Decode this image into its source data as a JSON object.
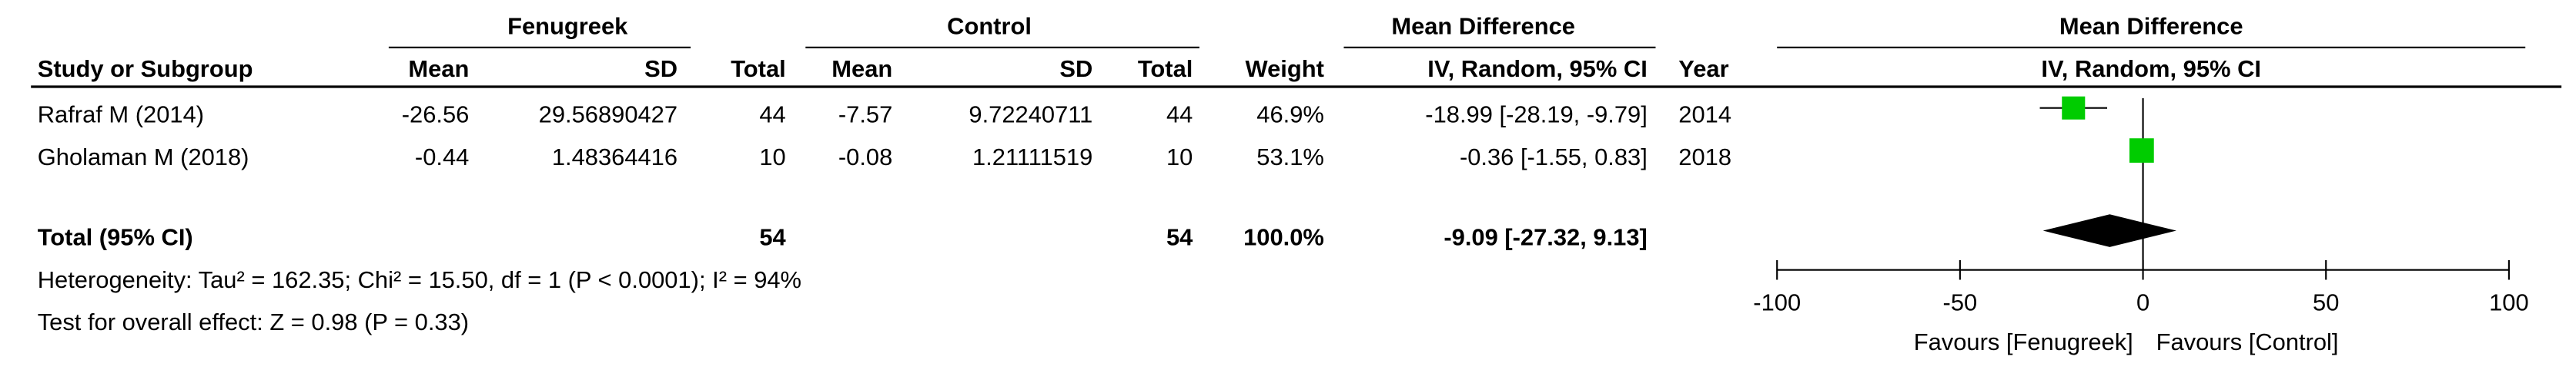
{
  "chart_data": {
    "type": "forest",
    "experimental_label": "Fenugreek",
    "control_label": "Control",
    "effect_label": "Mean Difference",
    "method_label": "IV, Random, 95% CI",
    "column_labels": {
      "study": "Study or Subgroup",
      "mean": "Mean",
      "sd": "SD",
      "total": "Total",
      "weight": "Weight",
      "year": "Year"
    },
    "studies": [
      {
        "name": "Rafraf M (2014)",
        "exp_mean": -26.56,
        "exp_sd": 29.56890427,
        "exp_total": 44,
        "ctl_mean": -7.57,
        "ctl_sd": 9.72240711,
        "ctl_total": 44,
        "weight": 46.9,
        "weight_label": "46.9%",
        "md": -18.99,
        "ci": [
          -28.19,
          -9.79
        ],
        "ci_label": "-18.99 [-28.19, -9.79]",
        "year": 2014
      },
      {
        "name": "Gholaman M (2018)",
        "exp_mean": -0.44,
        "exp_sd": 1.48364416,
        "exp_total": 10,
        "ctl_mean": -0.08,
        "ctl_sd": 1.21111519,
        "ctl_total": 10,
        "weight": 53.1,
        "weight_label": "53.1%",
        "md": -0.36,
        "ci": [
          -1.55,
          0.83
        ],
        "ci_label": "-0.36 [-1.55, 0.83]",
        "year": 2018
      }
    ],
    "total": {
      "name": "Total (95% CI)",
      "exp_total": 54,
      "ctl_total": 54,
      "weight": 100,
      "weight_label": "100.0%",
      "md": -9.09,
      "ci": [
        -27.32,
        9.13
      ],
      "ci_label": "-9.09 [-27.32, 9.13]"
    },
    "heterogeneity": "Heterogeneity: Tau² = 162.35; Chi² = 15.50, df = 1 (P < 0.0001); I² = 94%",
    "overall_effect": "Test for overall effect: Z = 0.98 (P = 0.33)",
    "xlim": [
      -100,
      100
    ],
    "xticks": [
      -100,
      -50,
      0,
      50,
      100
    ],
    "favours_left": "Favours [Fenugreek]",
    "favours_right": "Favours [Control]",
    "square_color": "#00cc00",
    "diamond_color": "#000000"
  }
}
